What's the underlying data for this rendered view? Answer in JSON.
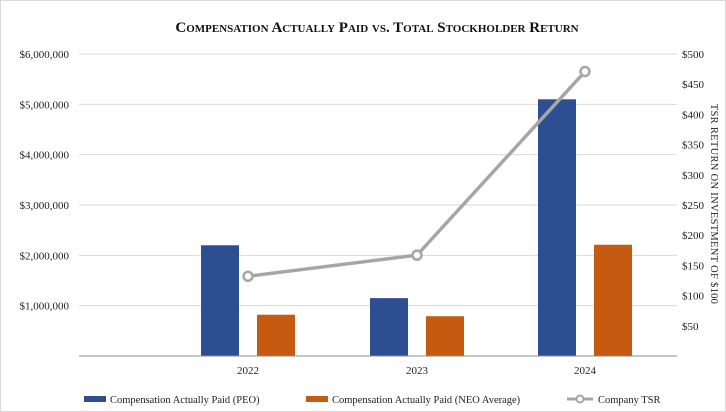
{
  "chart_data": {
    "type": "bar",
    "title": "Compensation Actually Paid vs. Total Stockholder Return",
    "categories": [
      "2022",
      "2023",
      "2024"
    ],
    "series": [
      {
        "name": "Compensation Actually Paid (PEO)",
        "type": "bar",
        "axis": "left",
        "color": "#2E4E92",
        "values": [
          2200000,
          1150000,
          5100000
        ]
      },
      {
        "name": "Compensation Actually Paid (NEO Average)",
        "type": "bar",
        "axis": "left",
        "color": "#C55A11",
        "values": [
          820000,
          790000,
          2210000
        ]
      },
      {
        "name": "Company TSR",
        "type": "line",
        "axis": "right",
        "color": "#A6A6A6",
        "values": [
          132,
          167,
          471
        ]
      }
    ],
    "y_left": {
      "label": "",
      "ylim": [
        0,
        6000000
      ],
      "ticks": [
        {
          "value": 1000000,
          "label": "$1,000,000"
        },
        {
          "value": 2000000,
          "label": "$2,000,000"
        },
        {
          "value": 3000000,
          "label": "$3,000,000"
        },
        {
          "value": 4000000,
          "label": "$4,000,000"
        },
        {
          "value": 5000000,
          "label": "$5,000,000"
        },
        {
          "value": 6000000,
          "label": "$6,000,000"
        }
      ]
    },
    "y_right": {
      "label": "TSR RETURN ON INVESTMENT OF $100",
      "ylim": [
        0,
        500
      ],
      "ticks": [
        {
          "value": 50,
          "label": "$50"
        },
        {
          "value": 100,
          "label": "$100"
        },
        {
          "value": 150,
          "label": "$150"
        },
        {
          "value": 200,
          "label": "$200"
        },
        {
          "value": 250,
          "label": "$250"
        },
        {
          "value": 300,
          "label": "$300"
        },
        {
          "value": 350,
          "label": "$350"
        },
        {
          "value": 400,
          "label": "$400"
        },
        {
          "value": 450,
          "label": "$450"
        },
        {
          "value": 500,
          "label": "$500"
        }
      ]
    },
    "grid": "horizontal",
    "legend_position": "bottom"
  }
}
